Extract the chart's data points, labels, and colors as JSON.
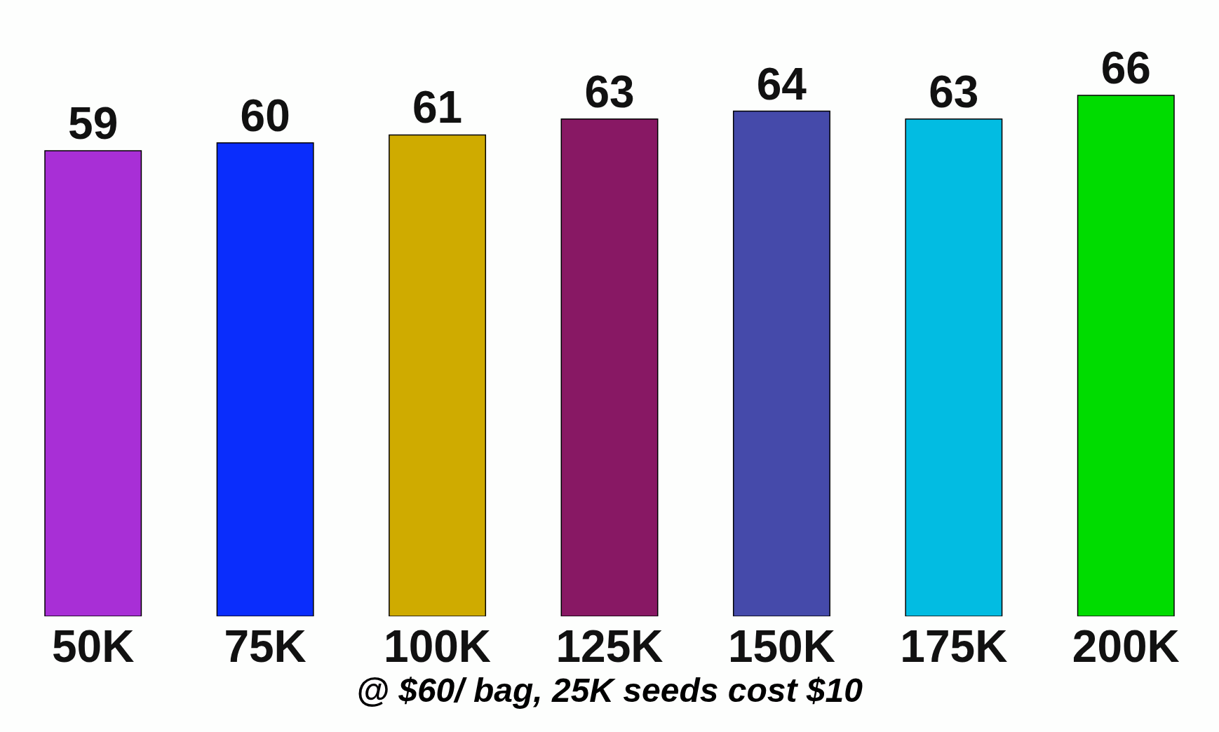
{
  "chart_data": {
    "type": "bar",
    "xlabel": "@ $60/ bag, 25K seeds cost $10",
    "categories": [
      "50K",
      "75K",
      "100K",
      "125K",
      "150K",
      "175K",
      "200K"
    ],
    "values": [
      59,
      60,
      61,
      63,
      64,
      63,
      66
    ],
    "colors": [
      "#a82fd6",
      "#0a2dfc",
      "#cfab00",
      "#881864",
      "#454aaa",
      "#02bce2",
      "#00dc00"
    ],
    "data_labels": true,
    "tick_labels": "x"
  }
}
